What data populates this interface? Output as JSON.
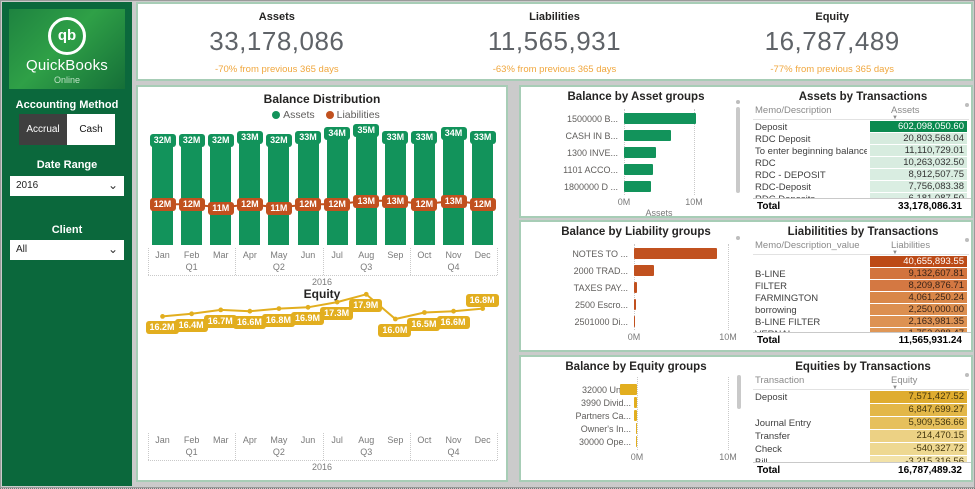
{
  "sidebar": {
    "logo": {
      "icon_text": "qb",
      "brand": "QuickBooks",
      "sub": "Online"
    },
    "accounting_method": {
      "label": "Accounting Method",
      "options": [
        {
          "label": "Accrual",
          "selected": false
        },
        {
          "label": "Cash",
          "selected": true
        }
      ]
    },
    "date_range": {
      "label": "Date Range",
      "value": "2016"
    },
    "client": {
      "label": "Client",
      "value": "All"
    }
  },
  "icons": {
    "dropdown_chevron": "⌄",
    "sort_caret": "▼"
  },
  "kpis": [
    {
      "label": "Assets",
      "value": "33,178,086",
      "delta": "-70% from previous 365 days"
    },
    {
      "label": "Liabilities",
      "value": "11,565,931",
      "delta": "-63% from previous 365 days"
    },
    {
      "label": "Equity",
      "value": "16,787,489",
      "delta": "-77% from previous 365 days"
    }
  ],
  "chart_data": [
    {
      "type": "bar",
      "title": "Balance Distribution",
      "categories": [
        "Jan",
        "Feb",
        "Mar",
        "Apr",
        "May",
        "Jun",
        "Jul",
        "Aug",
        "Sep",
        "Oct",
        "Nov",
        "Dec"
      ],
      "quarter_labels": [
        "Q1",
        "Q2",
        "Q3",
        "Q4"
      ],
      "year": "2016",
      "legend_position": "top-center",
      "ylim": [
        0,
        35
      ],
      "series": [
        {
          "name": "Assets",
          "type": "column",
          "values": [
            32,
            32,
            32,
            33,
            32,
            33,
            34,
            35,
            33,
            33,
            34,
            33
          ],
          "labels": [
            "32M",
            "32M",
            "32M",
            "33M",
            "32M",
            "33M",
            "34M",
            "35M",
            "33M",
            "33M",
            "34M",
            "33M"
          ]
        },
        {
          "name": "Liabilities",
          "type": "line",
          "values": [
            12,
            12,
            11,
            12,
            11,
            12,
            12,
            13,
            13,
            12,
            13,
            12
          ],
          "labels": [
            "12M",
            "12M",
            "11M",
            "12M",
            "11M",
            "12M",
            "12M",
            "13M",
            "13M",
            "12M",
            "13M",
            "12M"
          ]
        }
      ]
    },
    {
      "type": "line",
      "title": "Equity",
      "categories": [
        "Jan",
        "Feb",
        "Mar",
        "Apr",
        "May",
        "Jun",
        "Jul",
        "Aug",
        "Sep",
        "Oct",
        "Nov",
        "Dec"
      ],
      "quarter_labels": [
        "Q1",
        "Q2",
        "Q3",
        "Q4"
      ],
      "year": "2016",
      "values": [
        16.2,
        16.4,
        16.7,
        16.6,
        16.8,
        16.9,
        17.3,
        17.9,
        16.0,
        16.5,
        16.6,
        16.8
      ],
      "labels": [
        "16.2M",
        "16.4M",
        "16.7M",
        "16.6M",
        "16.8M",
        "16.9M",
        "17.3M",
        "17.9M",
        "16.0M",
        "16.5M",
        "16.6M",
        "16.8M"
      ]
    },
    {
      "type": "bar",
      "title": "Balance by Asset groups",
      "orientation": "horizontal",
      "categories": [
        "1500000 B...",
        "CASH IN B...",
        "1300 INVE...",
        "1101 ACCO...",
        "1800000 D ..."
      ],
      "values": [
        10.3,
        6.7,
        4.5,
        4.2,
        3.8
      ],
      "xticks": [
        "0M",
        "10M"
      ],
      "xlabel": "Assets",
      "xlim": [
        0,
        10
      ]
    },
    {
      "type": "bar",
      "title": "Balance by Liability groups",
      "orientation": "horizontal",
      "categories": [
        "NOTES TO ...",
        "2000 TRAD...",
        "TAXES PAY...",
        "2500 Escro...",
        "2501000 Di..."
      ],
      "values": [
        8.8,
        2.1,
        0.36,
        0.2,
        0.13
      ],
      "xticks": [
        "0M",
        "10M"
      ],
      "xlabel": "",
      "xlim": [
        0,
        10
      ]
    },
    {
      "type": "bar",
      "title": "Balance by Equity groups",
      "orientation": "horizontal",
      "categories": [
        "32000 Unr...",
        "3990 Divid...",
        "Partners Ca...",
        "Owner's In...",
        "30000 Ope..."
      ],
      "values": [
        -1.9,
        -0.36,
        -0.29,
        -0.15,
        -0.05
      ],
      "xticks": [
        "0M",
        "10M"
      ],
      "xlabel": "",
      "xlim": [
        0,
        10
      ]
    }
  ],
  "tables": {
    "assets": {
      "title": "Assets by Transactions",
      "columns": [
        "Memo/Description",
        "Assets"
      ],
      "rows": [
        {
          "name": "Deposit",
          "value": "602,098,050.60"
        },
        {
          "name": "RDC Deposit",
          "value": "20,803,568.04"
        },
        {
          "name": "To enter beginning balances",
          "value": "11,110,729.01"
        },
        {
          "name": "RDC",
          "value": "10,263,032.50"
        },
        {
          "name": "RDC - DEPOSIT",
          "value": "8,912,507.75"
        },
        {
          "name": "RDC-Deposit",
          "value": "7,756,083.38"
        },
        {
          "name": "RDC Deposits",
          "value": "6,181,087.50"
        }
      ],
      "cell_bg": [
        "#0a8a4f",
        "#d6ebde",
        "#d7ecdf",
        "#d8ece0",
        "#d9ede1",
        "#daeee2",
        "#dbeee3"
      ],
      "cell_fg": [
        "#ffffff",
        "#333333",
        "#333333",
        "#333333",
        "#333333",
        "#333333",
        "#333333"
      ],
      "total": {
        "name": "Total",
        "value": "33,178,086.31"
      }
    },
    "liabilities": {
      "title": "Liabilitities by Transactions",
      "columns": [
        "Memo/Description_value",
        "Liabilities"
      ],
      "rows": [
        {
          "name": "",
          "value": "40,655,893.55"
        },
        {
          "name": "B-LINE",
          "value": "9,132,607.81"
        },
        {
          "name": "FILTER",
          "value": "8,209,876.71"
        },
        {
          "name": "FARMINGTON",
          "value": "4,061,250.24"
        },
        {
          "name": "borrowing",
          "value": "2,250,000.00"
        },
        {
          "name": "B-LINE FILTER",
          "value": "2,163,981.35"
        },
        {
          "name": "VERNAL",
          "value": "1,752,088.47"
        }
      ],
      "cell_bg": [
        "#bc4a16",
        "#d2743e",
        "#d47842",
        "#d98749",
        "#dc8f50",
        "#dd9253",
        "#df9757"
      ],
      "cell_fg": [
        "#ffffff",
        "#3a2418",
        "#3a2418",
        "#3a2418",
        "#3a2418",
        "#3a2418",
        "#3a2418"
      ],
      "total": {
        "name": "Total",
        "value": "11,565,931.24"
      }
    },
    "equities": {
      "title": "Equities by Transactions",
      "columns": [
        "Transaction",
        "Equity"
      ],
      "rows": [
        {
          "name": "Deposit",
          "value": "7,571,427.52"
        },
        {
          "name": "",
          "value": "6,847,699.27"
        },
        {
          "name": "Journal Entry",
          "value": "5,909,536.66"
        },
        {
          "name": "Transfer",
          "value": "214,470.15"
        },
        {
          "name": "Check",
          "value": "-540,327.72"
        },
        {
          "name": "Bill",
          "value": "-3,215,316.56"
        }
      ],
      "cell_bg": [
        "#dfac2f",
        "#e3b748",
        "#e6c05c",
        "#ecd184",
        "#eed891",
        "#f2e2a8"
      ],
      "cell_fg": [
        "#44360d",
        "#44360d",
        "#44360d",
        "#44360d",
        "#44360d",
        "#44360d"
      ],
      "total": {
        "name": "Total",
        "value": "16,787,489.32"
      }
    }
  },
  "colors": {
    "assets_green": "#12935b",
    "liabilities_orange": "#c1511f",
    "equity_gold": "#e2ae1f",
    "panel_border": "#a7cdb6",
    "sidebar_green": "#0b683c",
    "delta_orange": "#f0a73e"
  }
}
